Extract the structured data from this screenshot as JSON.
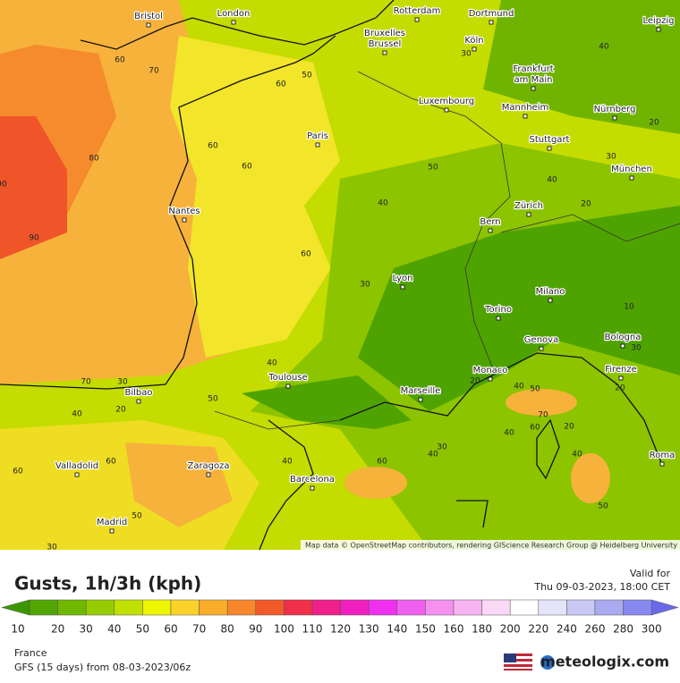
{
  "map": {
    "cities": [
      [
        "Bristol"
      ],
      [
        "London"
      ],
      [
        "Rotterdam"
      ],
      [
        "Dortmund"
      ],
      [
        "Leipzig"
      ],
      [
        "Bruxelles",
        "Brussel"
      ],
      [
        "Köln"
      ],
      [
        "Frankfurt",
        "am Main"
      ],
      [
        "Luxembourg"
      ],
      [
        "Mannheim"
      ],
      [
        "Nürnberg"
      ],
      [
        "Paris"
      ],
      [
        "Stuttgart"
      ],
      [
        "München"
      ],
      [
        "Nantes"
      ],
      [
        "Zürich"
      ],
      [
        "Bern"
      ],
      [
        "Lyon"
      ],
      [
        "Milano"
      ],
      [
        "Torino"
      ],
      [
        "Genova"
      ],
      [
        "Bologna"
      ],
      [
        "Toulouse"
      ],
      [
        "Monaco"
      ],
      [
        "Firenze"
      ],
      [
        "Bilbao"
      ],
      [
        "Marseille"
      ],
      [
        "Valladolid"
      ],
      [
        "Zaragoza"
      ],
      [
        "Barcelona"
      ],
      [
        "Roma"
      ],
      [
        "Madrid"
      ]
    ],
    "contour_labels": [
      60,
      70,
      60,
      50,
      60,
      60,
      80,
      90,
      90,
      50,
      40,
      60,
      30,
      40,
      20,
      40,
      30,
      30,
      20,
      10,
      30,
      20,
      70,
      30,
      40,
      20,
      50,
      40,
      40,
      30,
      40,
      60,
      20,
      40,
      50,
      70,
      40,
      60,
      20,
      40,
      50,
      60,
      60,
      50,
      30
    ],
    "attribution": "Map data © OpenStreetMap contributors, rendering GIScience Research Group @ Heidelberg University"
  },
  "legend": {
    "title": "Gusts, 1h/3h (kph)",
    "valid_label": "Valid for",
    "valid_time": "Thu 09-03-2023, 18:00 CET",
    "colorbar": {
      "labels": [
        10,
        20,
        30,
        40,
        50,
        60,
        70,
        80,
        90,
        100,
        110,
        120,
        130,
        140,
        150,
        160,
        180,
        200,
        220,
        240,
        260,
        280,
        300
      ],
      "colors": [
        "#3c9600",
        "#52a600",
        "#6fb800",
        "#96cc00",
        "#c0e000",
        "#eef500",
        "#fbd22a",
        "#f9ad2a",
        "#f7872a",
        "#f35a2a",
        "#f0304a",
        "#f0208a",
        "#f020c0",
        "#f030f0",
        "#f060f0",
        "#f590f0",
        "#f8b4f2",
        "#fad8f6",
        "#ffffff",
        "#e4e4fa",
        "#c8c8f5",
        "#aaaaf0",
        "#8888ee",
        "#6a6ae8"
      ]
    }
  },
  "footer": {
    "region": "France",
    "model_run": "GFS (15 days) from 08-03-2023/06z",
    "brand": "meteologix.com"
  }
}
